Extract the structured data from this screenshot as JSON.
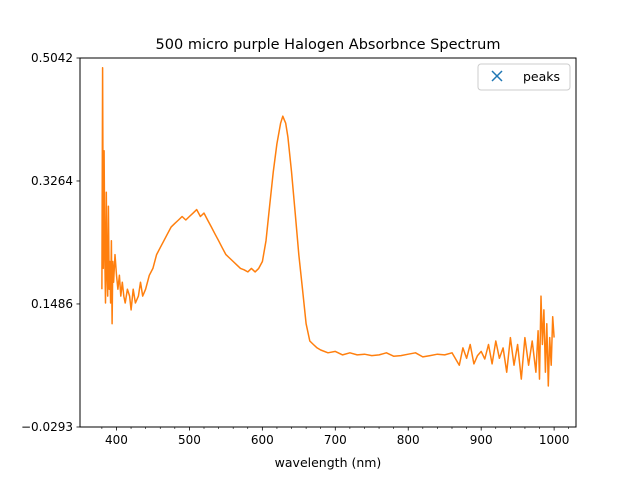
{
  "chart_data": {
    "type": "line",
    "title": "500 micro purple Halogen Absorbnce Spectrum",
    "xlabel": "wavelength (nm)",
    "ylabel": "",
    "xlim": [
      350,
      1030
    ],
    "ylim": [
      -0.0293,
      0.5042
    ],
    "xticks": [
      400,
      500,
      600,
      700,
      800,
      900,
      1000
    ],
    "xtick_labels": [
      "400",
      "500",
      "600",
      "700",
      "800",
      "900",
      "1000"
    ],
    "x_minor_step": 20,
    "yticks": [
      -0.0293,
      0.1486,
      0.3264,
      0.5042
    ],
    "ytick_labels": [
      "−0.0293",
      "0.1486",
      "0.3264",
      "0.5042"
    ],
    "grid": false,
    "legend_position": "top-right",
    "legend": [
      {
        "label": "peaks",
        "marker": "x",
        "color": "#1f77b4"
      }
    ],
    "series": [
      {
        "name": "",
        "color": "#ff7f0e",
        "x": [
          380,
          381,
          382,
          383,
          384,
          385,
          386,
          387,
          388,
          389,
          390,
          391,
          392,
          393,
          394,
          395,
          396,
          398,
          400,
          402,
          404,
          406,
          408,
          410,
          412,
          415,
          418,
          420,
          423,
          426,
          430,
          433,
          436,
          440,
          445,
          450,
          455,
          460,
          465,
          470,
          475,
          480,
          485,
          490,
          495,
          500,
          505,
          510,
          515,
          520,
          525,
          530,
          535,
          540,
          545,
          550,
          555,
          560,
          565,
          570,
          575,
          580,
          585,
          590,
          595,
          600,
          605,
          610,
          615,
          620,
          625,
          628,
          630,
          632,
          635,
          640,
          645,
          650,
          655,
          660,
          665,
          670,
          675,
          680,
          690,
          700,
          710,
          720,
          730,
          740,
          750,
          760,
          770,
          780,
          790,
          800,
          810,
          820,
          830,
          840,
          850,
          860,
          870,
          875,
          880,
          885,
          890,
          895,
          900,
          905,
          910,
          915,
          920,
          925,
          930,
          935,
          940,
          945,
          950,
          955,
          960,
          965,
          970,
          975,
          978,
          980,
          982,
          984,
          986,
          988,
          990,
          992,
          994,
          996,
          998,
          1000
        ],
        "y": [
          0.17,
          0.49,
          0.2,
          0.37,
          0.22,
          0.15,
          0.31,
          0.19,
          0.16,
          0.29,
          0.17,
          0.21,
          0.15,
          0.24,
          0.12,
          0.21,
          0.18,
          0.22,
          0.19,
          0.17,
          0.19,
          0.16,
          0.18,
          0.16,
          0.15,
          0.17,
          0.16,
          0.14,
          0.17,
          0.15,
          0.16,
          0.18,
          0.16,
          0.17,
          0.19,
          0.2,
          0.22,
          0.23,
          0.24,
          0.25,
          0.26,
          0.265,
          0.27,
          0.275,
          0.27,
          0.275,
          0.28,
          0.285,
          0.275,
          0.28,
          0.27,
          0.26,
          0.25,
          0.24,
          0.23,
          0.22,
          0.215,
          0.21,
          0.205,
          0.2,
          0.198,
          0.195,
          0.2,
          0.195,
          0.2,
          0.21,
          0.24,
          0.29,
          0.34,
          0.38,
          0.41,
          0.42,
          0.415,
          0.41,
          0.39,
          0.34,
          0.28,
          0.22,
          0.17,
          0.12,
          0.095,
          0.09,
          0.085,
          0.082,
          0.078,
          0.08,
          0.075,
          0.078,
          0.075,
          0.076,
          0.074,
          0.075,
          0.078,
          0.073,
          0.074,
          0.076,
          0.078,
          0.072,
          0.074,
          0.076,
          0.075,
          0.078,
          0.06,
          0.085,
          0.07,
          0.09,
          0.062,
          0.074,
          0.08,
          0.069,
          0.09,
          0.062,
          0.095,
          0.07,
          0.085,
          0.05,
          0.1,
          0.06,
          0.09,
          0.04,
          0.1,
          0.06,
          0.095,
          0.05,
          0.11,
          0.04,
          0.16,
          0.09,
          0.14,
          0.05,
          0.12,
          0.03,
          0.1,
          0.06,
          0.13,
          0.1
        ]
      }
    ]
  }
}
